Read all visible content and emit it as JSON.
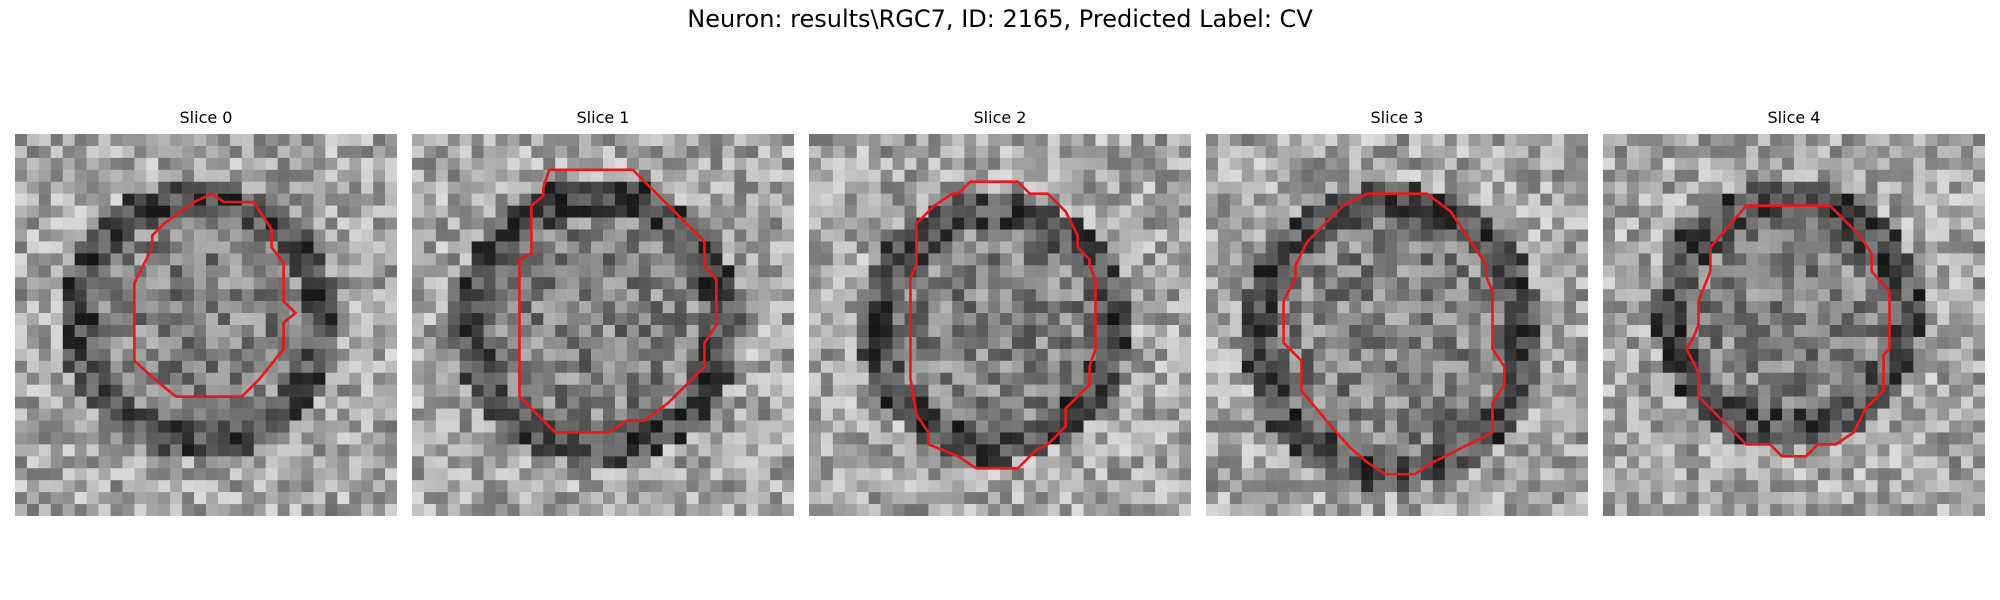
{
  "figure": {
    "title": "Neuron: results\\RGC7, ID: 2165, Predicted Label: CV"
  },
  "panels": [
    {
      "title": "Slice 0"
    },
    {
      "title": "Slice 1"
    },
    {
      "title": "Slice 2"
    },
    {
      "title": "Slice 3"
    },
    {
      "title": "Slice 4"
    }
  ],
  "colors": {
    "contour": "#e41a1c",
    "background": "#ffffff"
  }
}
